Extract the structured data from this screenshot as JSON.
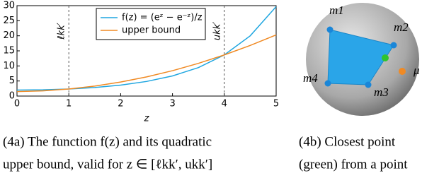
{
  "chart_data": {
    "type": "line",
    "x": [
      0,
      0.5,
      1,
      1.5,
      2,
      2.5,
      3,
      3.5,
      4,
      4.5,
      5
    ],
    "series": [
      {
        "name": "f(z) = (eᶻ − e⁻ᶻ)/z",
        "color": "#1fa6e0",
        "values": [
          2,
          2.08,
          2.35,
          2.83,
          3.63,
          4.85,
          6.68,
          9.45,
          13.65,
          20.0,
          29.68
        ]
      },
      {
        "name": "upper bound",
        "color": "#f08a24",
        "values": [
          1.5,
          1.74,
          2.35,
          3.32,
          4.66,
          6.36,
          8.42,
          10.85,
          13.65,
          16.81,
          20.3
        ]
      }
    ],
    "xlim": [
      0,
      5
    ],
    "ylim": [
      0,
      30
    ],
    "xticks": [
      0,
      1,
      2,
      3,
      4,
      5
    ],
    "yticks": [
      0,
      5,
      10,
      15,
      20,
      25,
      30
    ],
    "xlabel": "z",
    "annotations": [
      {
        "x": 1,
        "label": "ℓkk′"
      },
      {
        "x": 4,
        "label": "ukk′"
      }
    ]
  },
  "diagram": {
    "labels": [
      "m1",
      "m2",
      "m3",
      "m4",
      "μ"
    ]
  },
  "captions": [
    [
      "(4a) The function f(z) and its quadratic",
      "upper bound, valid for z ∈ [ℓkk′, ukk′]"
    ],
    [
      "(4b)  Closest  point",
      "(green) from a point"
    ]
  ]
}
